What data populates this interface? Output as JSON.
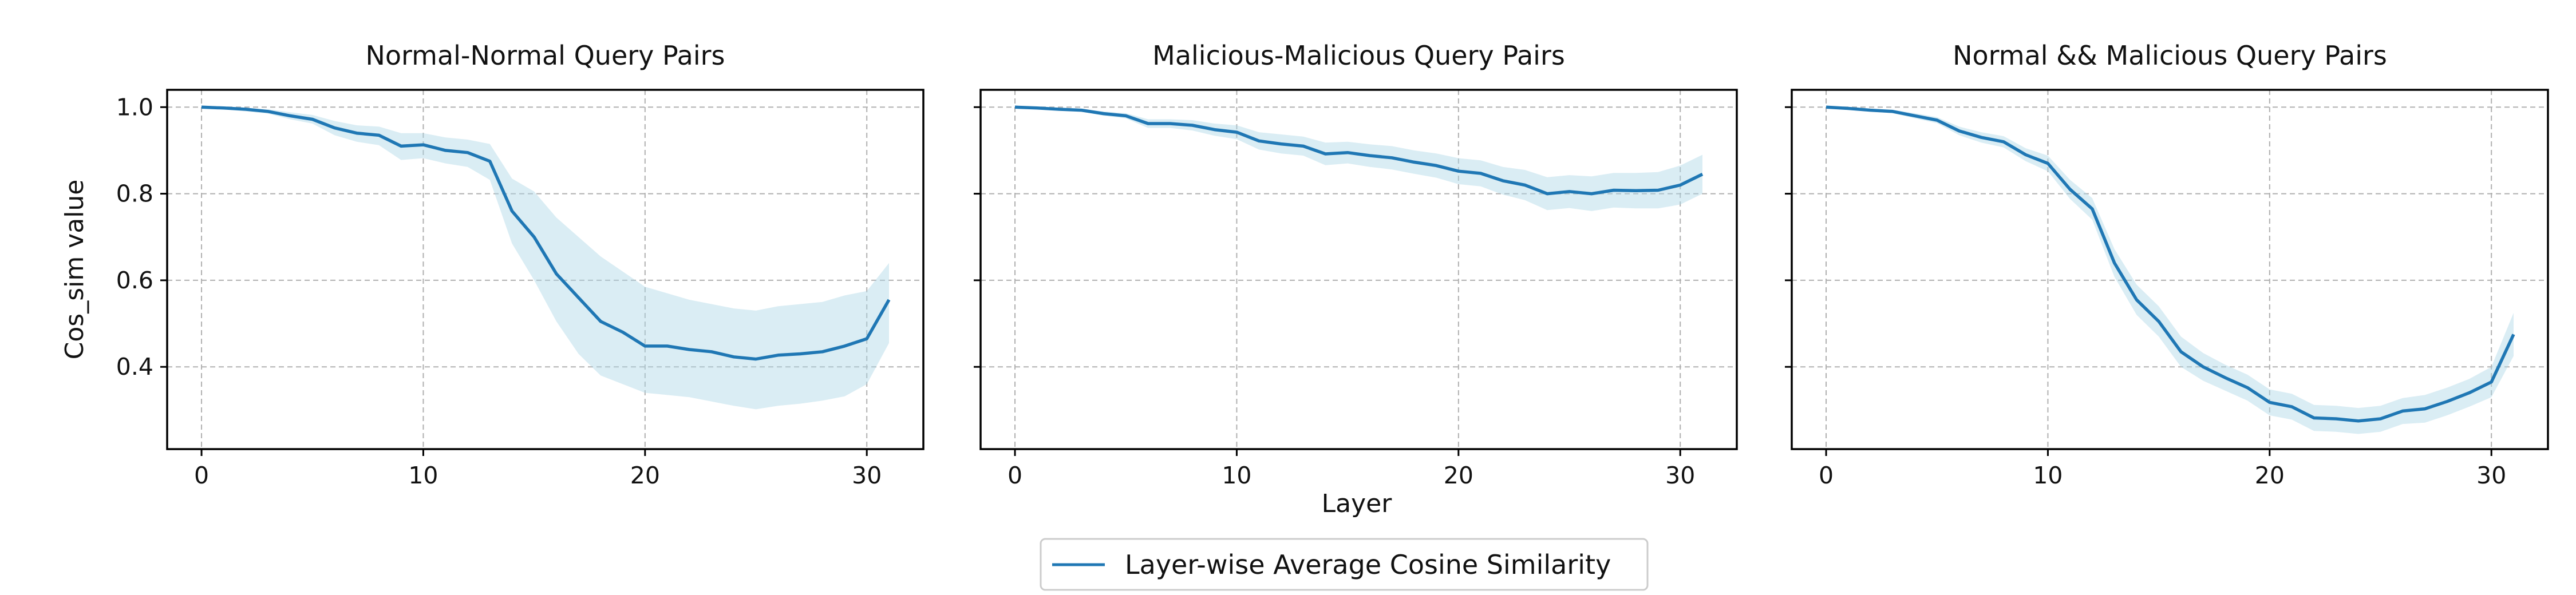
{
  "figure": {
    "xlabel": "Layer",
    "ylabel": "Cos_sim value",
    "legend": {
      "label": "Layer-wise Average Cosine Similarity",
      "placement": "bottom-center"
    }
  },
  "colors": {
    "line": "#1f77b4",
    "band": "#add8e6",
    "grid": "#b0b0b0",
    "axis": "#000000"
  },
  "chart_data": [
    {
      "type": "line",
      "title": "Normal-Normal Query Pairs",
      "xlim": [
        -1.55,
        32.55
      ],
      "ylim": [
        0.21,
        1.04
      ],
      "xticks": [
        0,
        10,
        20,
        30
      ],
      "yticks": [
        0.4,
        0.6,
        0.8,
        1.0
      ],
      "ytick_labels": [
        "0.4",
        "0.6",
        "0.8",
        "1.0"
      ],
      "grid": true,
      "series": [
        {
          "name": "Layer-wise Average Cosine Similarity",
          "x": [
            0,
            1,
            2,
            3,
            4,
            5,
            6,
            7,
            8,
            9,
            10,
            11,
            12,
            13,
            14,
            15,
            16,
            17,
            18,
            19,
            20,
            21,
            22,
            23,
            24,
            25,
            26,
            27,
            28,
            29,
            30,
            31
          ],
          "y": [
            1.0,
            0.998,
            0.995,
            0.99,
            0.98,
            0.972,
            0.952,
            0.94,
            0.935,
            0.91,
            0.913,
            0.9,
            0.895,
            0.875,
            0.76,
            0.7,
            0.615,
            0.56,
            0.505,
            0.48,
            0.448,
            0.448,
            0.44,
            0.435,
            0.423,
            0.418,
            0.427,
            0.43,
            0.435,
            0.448,
            0.465,
            0.555
          ],
          "upper": [
            1.0,
            1.0,
            0.998,
            0.995,
            0.988,
            0.982,
            0.968,
            0.958,
            0.955,
            0.94,
            0.94,
            0.93,
            0.925,
            0.915,
            0.835,
            0.805,
            0.745,
            0.7,
            0.655,
            0.62,
            0.585,
            0.57,
            0.555,
            0.545,
            0.535,
            0.53,
            0.54,
            0.545,
            0.55,
            0.565,
            0.575,
            0.64
          ],
          "lower": [
            1.0,
            0.995,
            0.99,
            0.985,
            0.972,
            0.962,
            0.935,
            0.92,
            0.912,
            0.878,
            0.882,
            0.87,
            0.862,
            0.832,
            0.685,
            0.6,
            0.505,
            0.43,
            0.38,
            0.36,
            0.34,
            0.335,
            0.33,
            0.32,
            0.31,
            0.302,
            0.31,
            0.315,
            0.322,
            0.332,
            0.36,
            0.455
          ]
        }
      ]
    },
    {
      "type": "line",
      "title": "Malicious-Malicious Query Pairs",
      "xlim": [
        -1.55,
        32.55
      ],
      "ylim": [
        0.21,
        1.04
      ],
      "xticks": [
        0,
        10,
        20,
        30
      ],
      "yticks": [
        0.4,
        0.6,
        0.8,
        1.0
      ],
      "ytick_labels": [],
      "grid": true,
      "series": [
        {
          "name": "Layer-wise Average Cosine Similarity",
          "x": [
            0,
            1,
            2,
            3,
            4,
            5,
            6,
            7,
            8,
            9,
            10,
            11,
            12,
            13,
            14,
            15,
            16,
            17,
            18,
            19,
            20,
            21,
            22,
            23,
            24,
            25,
            26,
            27,
            28,
            29,
            30,
            31
          ],
          "y": [
            1.0,
            0.998,
            0.995,
            0.993,
            0.985,
            0.98,
            0.962,
            0.962,
            0.958,
            0.948,
            0.942,
            0.922,
            0.915,
            0.91,
            0.892,
            0.895,
            0.888,
            0.883,
            0.873,
            0.865,
            0.852,
            0.847,
            0.83,
            0.82,
            0.8,
            0.805,
            0.8,
            0.808,
            0.807,
            0.808,
            0.82,
            0.845
          ],
          "upper": [
            1.0,
            1.0,
            0.998,
            0.996,
            0.99,
            0.986,
            0.972,
            0.972,
            0.97,
            0.962,
            0.958,
            0.942,
            0.937,
            0.932,
            0.918,
            0.92,
            0.914,
            0.91,
            0.9,
            0.893,
            0.882,
            0.877,
            0.862,
            0.855,
            0.838,
            0.843,
            0.84,
            0.848,
            0.848,
            0.85,
            0.865,
            0.89
          ],
          "lower": [
            1.0,
            0.996,
            0.992,
            0.99,
            0.98,
            0.974,
            0.952,
            0.952,
            0.946,
            0.934,
            0.926,
            0.902,
            0.893,
            0.888,
            0.866,
            0.87,
            0.862,
            0.856,
            0.846,
            0.837,
            0.822,
            0.817,
            0.798,
            0.785,
            0.762,
            0.767,
            0.76,
            0.768,
            0.766,
            0.766,
            0.775,
            0.8
          ]
        }
      ]
    },
    {
      "type": "line",
      "title": "Normal && Malicious Query Pairs",
      "xlim": [
        -1.55,
        32.55
      ],
      "ylim": [
        0.21,
        1.04
      ],
      "xticks": [
        0,
        10,
        20,
        30
      ],
      "yticks": [
        0.4,
        0.6,
        0.8,
        1.0
      ],
      "ytick_labels": [],
      "grid": true,
      "series": [
        {
          "name": "Layer-wise Average Cosine Similarity",
          "x": [
            0,
            1,
            2,
            3,
            4,
            5,
            6,
            7,
            8,
            9,
            10,
            11,
            12,
            13,
            14,
            15,
            16,
            17,
            18,
            19,
            20,
            21,
            22,
            23,
            24,
            25,
            26,
            27,
            28,
            29,
            30,
            31
          ],
          "y": [
            1.0,
            0.997,
            0.993,
            0.99,
            0.98,
            0.97,
            0.945,
            0.93,
            0.92,
            0.89,
            0.87,
            0.81,
            0.765,
            0.64,
            0.555,
            0.505,
            0.435,
            0.4,
            0.375,
            0.352,
            0.318,
            0.308,
            0.282,
            0.28,
            0.275,
            0.28,
            0.298,
            0.303,
            0.32,
            0.34,
            0.365,
            0.475
          ],
          "upper": [
            1.0,
            1.0,
            0.996,
            0.994,
            0.986,
            0.977,
            0.955,
            0.942,
            0.933,
            0.905,
            0.888,
            0.832,
            0.79,
            0.672,
            0.59,
            0.54,
            0.47,
            0.432,
            0.405,
            0.382,
            0.348,
            0.338,
            0.312,
            0.31,
            0.305,
            0.31,
            0.328,
            0.335,
            0.352,
            0.372,
            0.4,
            0.525
          ],
          "lower": [
            1.0,
            0.994,
            0.99,
            0.986,
            0.974,
            0.963,
            0.935,
            0.918,
            0.907,
            0.875,
            0.852,
            0.788,
            0.74,
            0.608,
            0.52,
            0.47,
            0.4,
            0.368,
            0.345,
            0.322,
            0.288,
            0.278,
            0.252,
            0.25,
            0.245,
            0.25,
            0.268,
            0.271,
            0.288,
            0.308,
            0.33,
            0.425
          ]
        }
      ]
    }
  ]
}
